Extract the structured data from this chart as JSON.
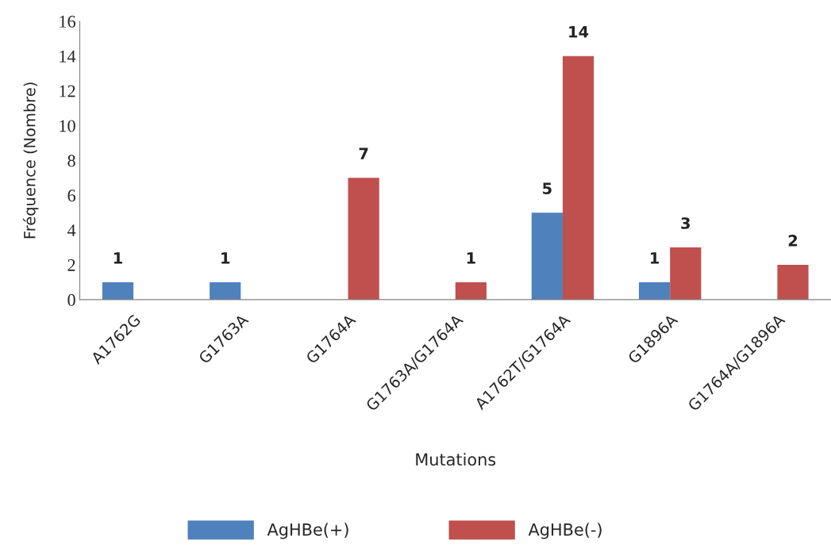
{
  "chart_data": {
    "type": "bar",
    "categories": [
      "A1762G",
      "G1763A",
      "G1764A",
      "G1763A/G1764A",
      "A1762T/G1764A",
      "G1896A",
      "G1764A/G1896A"
    ],
    "series": [
      {
        "name": "AgHBe(+)",
        "color": "#4f81bd",
        "values": [
          1,
          1,
          null,
          null,
          5,
          1,
          null
        ],
        "value_labels": [
          "1",
          "1",
          null,
          null,
          "5",
          "1",
          null
        ]
      },
      {
        "name": "AgHBe(-)",
        "color": "#c0504d",
        "values": [
          null,
          null,
          7,
          1,
          14,
          3,
          2
        ],
        "value_labels": [
          null,
          null,
          "7",
          "1",
          "14",
          "3",
          "2"
        ]
      }
    ],
    "xlabel": "Mutations",
    "ylabel": "Fréquence (Nombre)",
    "ylim": [
      0,
      16
    ],
    "yticks": [
      0,
      2,
      4,
      6,
      8,
      10,
      12,
      14,
      16
    ],
    "grid": false,
    "legend": "bottom"
  }
}
